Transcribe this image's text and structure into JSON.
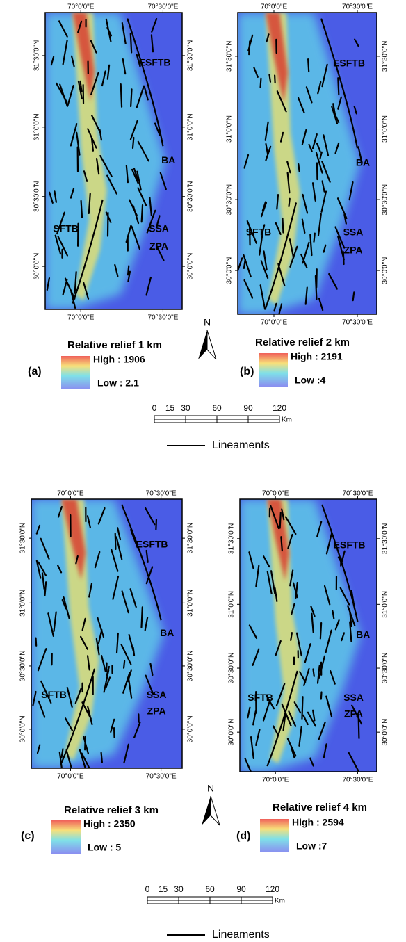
{
  "map_labels": {
    "lon": [
      "70°0'0\"E",
      "70°30'0\"E"
    ],
    "lat": [
      "31°30'0\"N",
      "31°0'0\"N",
      "30°30'0\"N",
      "30°0'0\"N"
    ],
    "regions": [
      "ESFTB",
      "BA",
      "SSA",
      "ZPA",
      "SFTB"
    ]
  },
  "panels": [
    {
      "label": "(a)",
      "title": "Relative relief 1 km",
      "high": "High : 1906",
      "low": "Low : 2.1"
    },
    {
      "label": "(b)",
      "title": "Relative relief 2 km",
      "high": "High : 2191",
      "low": "Low :4"
    },
    {
      "label": "(c)",
      "title": "Relative relief 3 km",
      "high": "High : 2350",
      "low": "Low : 5"
    },
    {
      "label": "(d)",
      "title": "Relative relief 4 km",
      "high": "High : 2594",
      "low": "Low :7"
    }
  ],
  "north": "N",
  "scale_bar": {
    "ticks": [
      0,
      15,
      30,
      60,
      90,
      120
    ],
    "unit": "Km"
  },
  "legend_line": "Lineaments"
}
